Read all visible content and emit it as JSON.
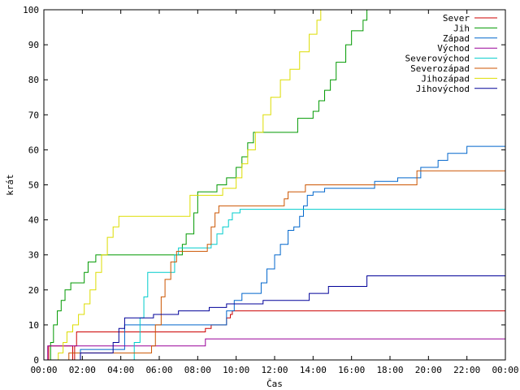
{
  "chart_data": {
    "type": "line",
    "title": "",
    "xlabel": "Čas",
    "ylabel": "krát",
    "xlim": [
      0,
      24
    ],
    "ylim": [
      0,
      100
    ],
    "grid": false,
    "legend_position": "top-right",
    "x_tick_labels": [
      "00:00",
      "02:00",
      "04:00",
      "06:00",
      "08:00",
      "10:00",
      "12:00",
      "14:00",
      "16:00",
      "18:00",
      "20:00",
      "22:00",
      "00:00"
    ],
    "x_tick_values": [
      0,
      2,
      4,
      6,
      8,
      10,
      12,
      14,
      16,
      18,
      20,
      22,
      24
    ],
    "y_tick_values": [
      0,
      10,
      20,
      30,
      40,
      50,
      60,
      70,
      80,
      90,
      100
    ],
    "series": [
      {
        "name": "Sever",
        "color": "#cc0000",
        "step": true,
        "x": [
          0.15,
          0.25,
          1.5,
          1.6,
          1.7,
          8.2,
          8.4,
          8.7,
          9.5,
          9.7,
          9.8,
          24
        ],
        "y": [
          0,
          4,
          0,
          4,
          8,
          8,
          9,
          10,
          12,
          13,
          14,
          14
        ]
      },
      {
        "name": "Jih",
        "color": "#009900",
        "step": true,
        "x": [
          0.2,
          0.35,
          0.5,
          0.7,
          0.9,
          1.1,
          1.4,
          2.1,
          2.3,
          2.7,
          2.9,
          7.0,
          7.2,
          7.4,
          7.8,
          8.0,
          9.0,
          9.5,
          10.0,
          10.3,
          10.6,
          10.9,
          11.0,
          12.6,
          13.2,
          13.7,
          14.0,
          14.3,
          14.6,
          14.9,
          15.2,
          15.7,
          16.0,
          16.5,
          16.6,
          16.8,
          24
        ],
        "y": [
          0,
          5,
          10,
          14,
          17,
          20,
          22,
          25,
          28,
          30,
          30,
          30,
          33,
          36,
          42,
          48,
          50,
          52,
          55,
          58,
          62,
          65,
          65,
          65,
          69,
          69,
          71,
          74,
          77,
          80,
          85,
          90,
          94,
          94,
          97,
          100,
          100
        ]
      },
      {
        "name": "Západ",
        "color": "#0066cc",
        "step": true,
        "x": [
          1.7,
          1.9,
          3.8,
          4.2,
          9.2,
          9.5,
          9.9,
          10.3,
          11.1,
          11.3,
          11.6,
          12.0,
          12.3,
          12.7,
          13.0,
          13.3,
          13.5,
          13.7,
          14.0,
          14.6,
          16.6,
          17.2,
          18.4,
          19.2,
          19.6,
          20.5,
          21.0,
          22.0,
          24
        ],
        "y": [
          0,
          3,
          3,
          10,
          10,
          14,
          17,
          19,
          19,
          22,
          26,
          30,
          33,
          37,
          38,
          41,
          44,
          47,
          48,
          49,
          49,
          51,
          52,
          52,
          55,
          57,
          59,
          61,
          61
        ]
      },
      {
        "name": "Východ",
        "color": "#990099",
        "step": true,
        "x": [
          0.1,
          0.2,
          8.2,
          8.4,
          24
        ],
        "y": [
          0,
          4,
          4,
          6,
          6
        ]
      },
      {
        "name": "Severovýchod",
        "color": "#00cccc",
        "step": true,
        "x": [
          4.5,
          4.7,
          5.0,
          5.2,
          5.4,
          6.2,
          6.8,
          7.0,
          7.6,
          8.7,
          9.0,
          9.3,
          9.6,
          9.8,
          10.2,
          24
        ],
        "y": [
          0,
          5,
          12,
          18,
          25,
          25,
          30,
          32,
          32,
          33,
          36,
          38,
          40,
          42,
          43,
          43
        ]
      },
      {
        "name": "Severozápad",
        "color": "#cc5500",
        "step": true,
        "x": [
          1.2,
          1.3,
          5.4,
          5.6,
          5.8,
          6.1,
          6.3,
          6.6,
          6.9,
          8.5,
          8.7,
          8.9,
          9.1,
          12.3,
          12.5,
          12.7,
          13.4,
          13.6,
          19.1,
          19.4,
          24
        ],
        "y": [
          0,
          2,
          2,
          4,
          10,
          18,
          23,
          28,
          31,
          33,
          38,
          42,
          44,
          44,
          46,
          48,
          48,
          50,
          50,
          54,
          54
        ]
      },
      {
        "name": "Jihozápad",
        "color": "#dddd00",
        "step": true,
        "x": [
          0.6,
          0.75,
          1.0,
          1.2,
          1.5,
          1.8,
          2.1,
          2.4,
          2.7,
          3.0,
          3.3,
          3.6,
          3.9,
          4.2,
          7.4,
          7.6,
          9.0,
          9.3,
          10.0,
          10.3,
          10.6,
          11.0,
          11.4,
          11.8,
          12.3,
          12.8,
          13.3,
          13.8,
          14.2,
          14.4,
          24
        ],
        "y": [
          0,
          2,
          5,
          8,
          10,
          13,
          16,
          20,
          25,
          30,
          35,
          38,
          41,
          41,
          41,
          47,
          47,
          49,
          52,
          56,
          60,
          65,
          70,
          75,
          80,
          83,
          88,
          93,
          97,
          100,
          100
        ]
      },
      {
        "name": "Jihovýchod",
        "color": "#000099",
        "step": true,
        "x": [
          1.8,
          1.9,
          3.4,
          3.6,
          3.9,
          4.2,
          5.4,
          5.7,
          7.0,
          8.0,
          8.6,
          9.5,
          11.2,
          11.4,
          13.6,
          13.8,
          14.5,
          14.8,
          16.6,
          16.8,
          24
        ],
        "y": [
          0,
          2,
          2,
          5,
          9,
          12,
          12,
          13,
          14,
          14,
          15,
          16,
          16,
          17,
          17,
          19,
          19,
          21,
          21,
          24,
          24
        ]
      }
    ]
  }
}
